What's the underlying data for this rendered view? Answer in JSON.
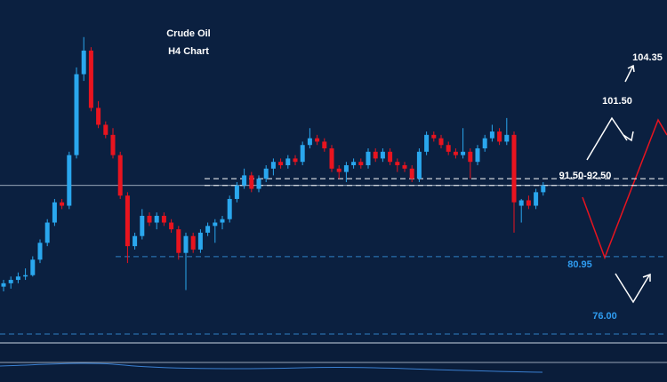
{
  "chart_data": {
    "type": "candlestick",
    "title": "Crude Oil",
    "subtitle": "H4 Chart",
    "up_color": "#2aa7ee",
    "down_color": "#e8141f",
    "ylim": [
      70,
      119
    ],
    "ohlc": [
      [
        76.5,
        77.5,
        75.8,
        77.0
      ],
      [
        77.0,
        78.0,
        76.2,
        77.5
      ],
      [
        77.5,
        78.6,
        77.0,
        78.0
      ],
      [
        78.0,
        79.2,
        77.5,
        78.2
      ],
      [
        78.2,
        81.0,
        78.0,
        80.5
      ],
      [
        80.5,
        83.5,
        80.0,
        83.0
      ],
      [
        83.0,
        86.5,
        82.5,
        86.0
      ],
      [
        86.0,
        89.5,
        85.5,
        89.0
      ],
      [
        89.0,
        89.5,
        88.0,
        88.5
      ],
      [
        88.5,
        96.5,
        88.0,
        96.0
      ],
      [
        96.0,
        109.0,
        95.5,
        108.0
      ],
      [
        108.0,
        113.5,
        107.0,
        111.5
      ],
      [
        111.5,
        112.0,
        102.5,
        103.0
      ],
      [
        103.0,
        104.0,
        100.0,
        100.5
      ],
      [
        100.5,
        101.0,
        98.5,
        99.0
      ],
      [
        99.0,
        100.0,
        95.5,
        96.0
      ],
      [
        96.0,
        96.5,
        89.5,
        90.0
      ],
      [
        90.0,
        90.5,
        80.0,
        82.5
      ],
      [
        82.5,
        84.5,
        82.0,
        84.0
      ],
      [
        84.0,
        88.0,
        83.5,
        87.0
      ],
      [
        87.0,
        87.5,
        85.5,
        86.0
      ],
      [
        86.0,
        87.5,
        85.0,
        87.0
      ],
      [
        87.0,
        87.5,
        85.5,
        86.0
      ],
      [
        86.0,
        86.5,
        84.5,
        85.0
      ],
      [
        85.0,
        85.5,
        80.5,
        81.5
      ],
      [
        81.5,
        84.5,
        76.0,
        84.0
      ],
      [
        84.0,
        84.5,
        81.5,
        82.0
      ],
      [
        82.0,
        85.0,
        81.5,
        84.5
      ],
      [
        84.5,
        86.0,
        84.0,
        85.5
      ],
      [
        85.5,
        86.5,
        83.0,
        86.0
      ],
      [
        86.0,
        87.0,
        85.0,
        86.5
      ],
      [
        86.5,
        90.0,
        86.0,
        89.5
      ],
      [
        89.5,
        92.0,
        89.0,
        91.5
      ],
      [
        91.5,
        94.0,
        91.0,
        93.0
      ],
      [
        93.0,
        93.5,
        90.5,
        91.0
      ],
      [
        91.0,
        93.0,
        90.5,
        92.5
      ],
      [
        92.5,
        94.5,
        92.0,
        94.0
      ],
      [
        94.0,
        95.5,
        93.0,
        95.0
      ],
      [
        95.0,
        95.5,
        94.0,
        94.5
      ],
      [
        94.5,
        96.0,
        94.0,
        95.5
      ],
      [
        95.5,
        96.0,
        94.5,
        95.0
      ],
      [
        95.0,
        98.0,
        94.5,
        97.5
      ],
      [
        97.5,
        100.0,
        97.0,
        98.5
      ],
      [
        98.5,
        99.0,
        97.5,
        98.0
      ],
      [
        98.0,
        98.5,
        96.5,
        97.0
      ],
      [
        97.0,
        97.5,
        93.5,
        94.0
      ],
      [
        94.0,
        94.5,
        92.5,
        93.5
      ],
      [
        93.5,
        95.0,
        92.0,
        94.5
      ],
      [
        94.5,
        95.5,
        94.0,
        95.0
      ],
      [
        95.0,
        95.5,
        94.0,
        94.5
      ],
      [
        94.5,
        97.0,
        94.0,
        96.5
      ],
      [
        96.5,
        97.0,
        95.0,
        95.5
      ],
      [
        95.5,
        97.0,
        95.0,
        96.5
      ],
      [
        96.5,
        97.0,
        94.5,
        95.0
      ],
      [
        95.0,
        95.5,
        93.5,
        94.5
      ],
      [
        94.5,
        95.0,
        93.5,
        94.0
      ],
      [
        94.0,
        94.5,
        92.0,
        92.5
      ],
      [
        92.5,
        97.0,
        92.0,
        96.5
      ],
      [
        96.5,
        99.5,
        96.0,
        99.0
      ],
      [
        99.0,
        99.5,
        98.0,
        98.5
      ],
      [
        98.5,
        99.0,
        97.0,
        97.5
      ],
      [
        97.5,
        98.0,
        96.0,
        96.5
      ],
      [
        96.5,
        97.0,
        95.5,
        96.0
      ],
      [
        96.0,
        100.0,
        95.5,
        96.5
      ],
      [
        96.5,
        97.0,
        92.5,
        95.0
      ],
      [
        95.0,
        97.5,
        94.5,
        97.0
      ],
      [
        97.0,
        99.0,
        96.5,
        98.5
      ],
      [
        98.5,
        100.5,
        98.0,
        99.5
      ],
      [
        99.5,
        100.0,
        97.5,
        98.0
      ],
      [
        98.0,
        101.5,
        97.5,
        99.0
      ],
      [
        99.0,
        99.5,
        84.5,
        89.0
      ],
      [
        88.5,
        89.5,
        86.0,
        89.3
      ],
      [
        89.3,
        90.0,
        88.0,
        88.5
      ],
      [
        88.5,
        91.0,
        88.0,
        90.5
      ],
      [
        90.5,
        92.0,
        90.0,
        91.5
      ]
    ],
    "zone": {
      "label": "91.50-92.50",
      "range": [
        91.5,
        92.5
      ]
    },
    "annotations": [
      104.35,
      {
        "value": 101.5,
        "label": "101.50"
      },
      80.95,
      {
        "value": 76,
        "label": "76.00"
      }
    ]
  }
}
